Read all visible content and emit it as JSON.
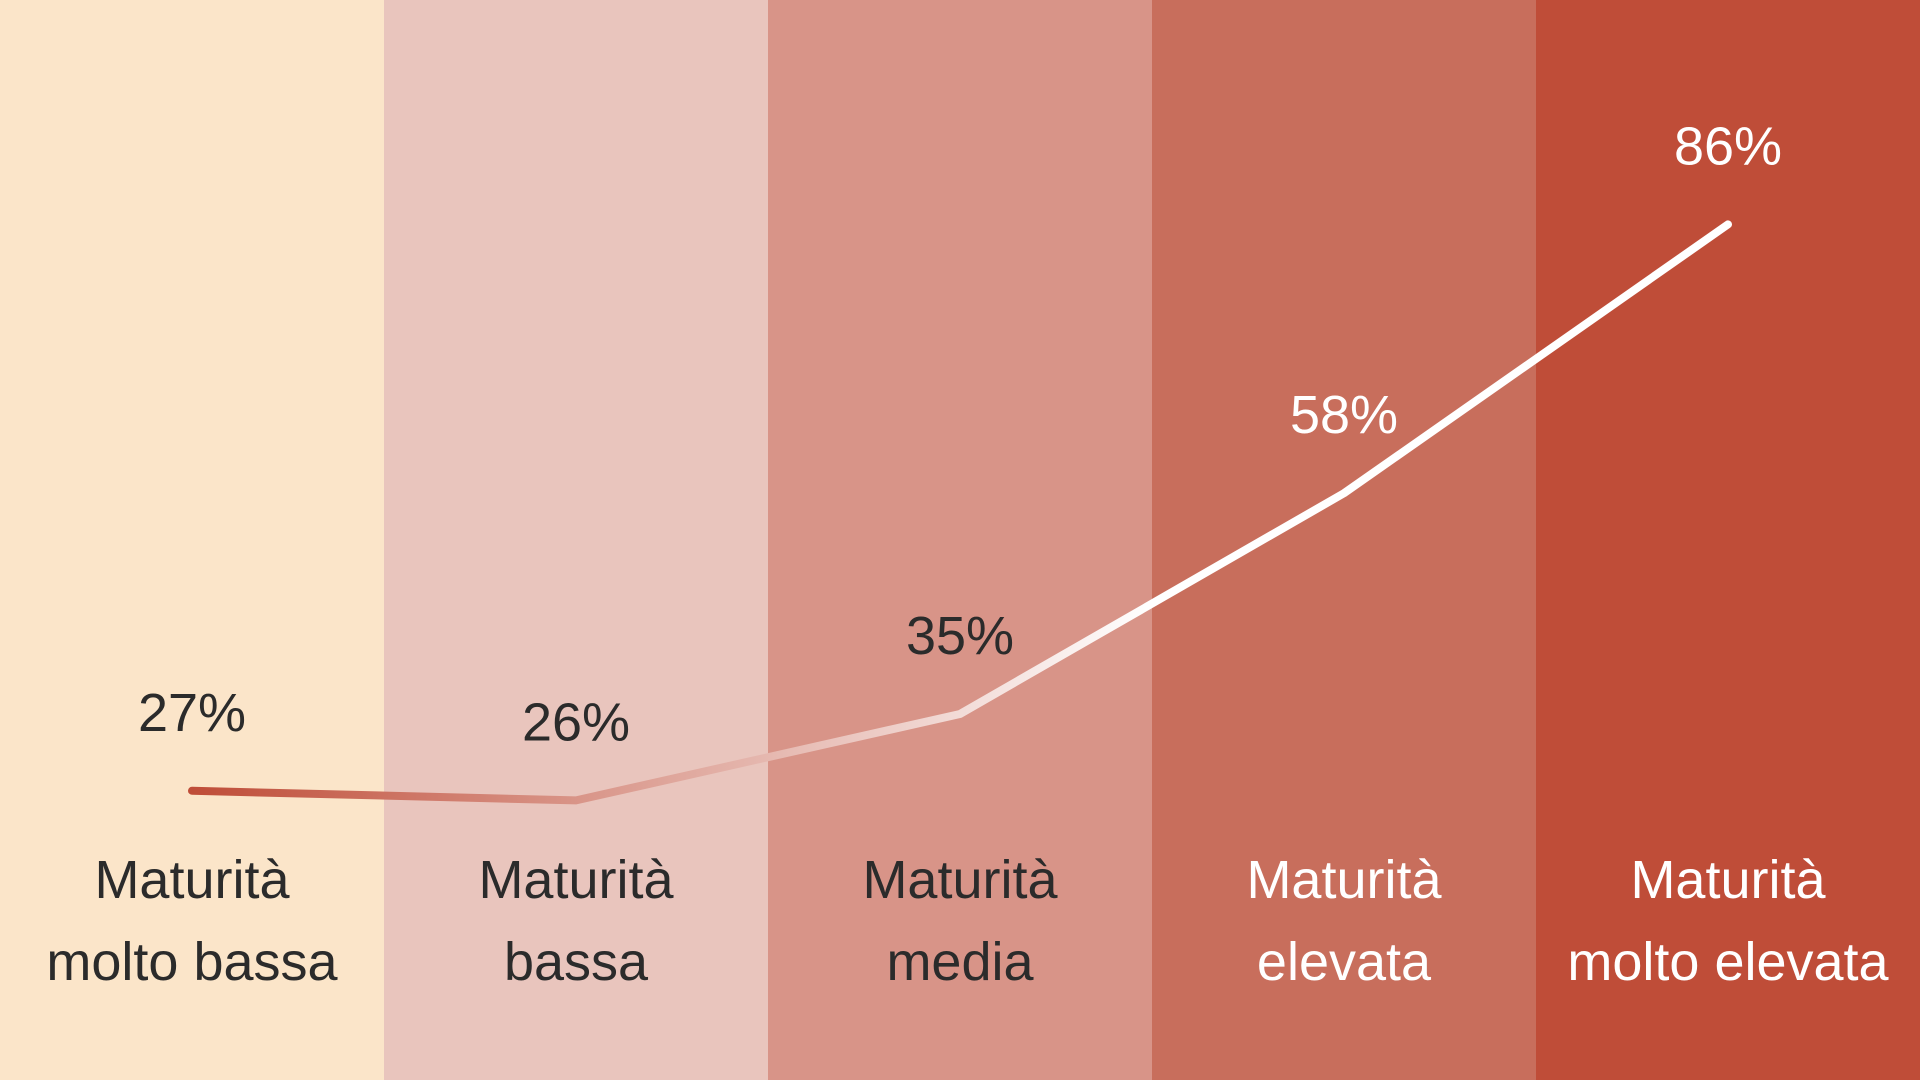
{
  "chart_data": {
    "type": "line",
    "title": "",
    "xlabel": "",
    "ylabel": "",
    "categories": [
      [
        "Maturità",
        "molto bassa"
      ],
      [
        "Maturità",
        "bassa"
      ],
      [
        "Maturità",
        "media"
      ],
      [
        "Maturità",
        "elevata"
      ],
      [
        "Maturità",
        "molto elevata"
      ]
    ],
    "values": [
      27,
      26,
      35,
      58,
      86
    ],
    "value_labels": [
      "27%",
      "26%",
      "35%",
      "58%",
      "86%"
    ],
    "unit": "%",
    "ylim": [
      0,
      100
    ],
    "grid": false,
    "legend": "none",
    "colors": {
      "band_fills": [
        "#fbe5c9",
        "#e9c5bd",
        "#d89488",
        "#c86e5c",
        "#bf4d38"
      ],
      "label_text": [
        "#2b2b2b",
        "#2b2b2b",
        "#2b2b2b",
        "#ffffff",
        "#ffffff"
      ],
      "line_start": "#bf4d38",
      "line_end": "#ffffff"
    }
  }
}
